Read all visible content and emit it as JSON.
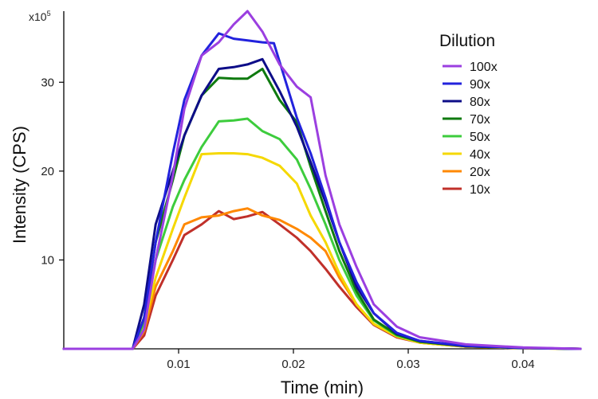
{
  "chart_data": {
    "type": "line",
    "xlabel": "Time (min)",
    "ylabel": "Intensity (CPS)",
    "y_multiplier": {
      "base": "x10",
      "exp": "5"
    },
    "xlim": [
      0,
      0.045
    ],
    "ylim": [
      0,
      38
    ],
    "x_ticks": [
      {
        "value": 0.01,
        "label": "0.01"
      },
      {
        "value": 0.02,
        "label": "0.02"
      },
      {
        "value": 0.03,
        "label": "0.03"
      },
      {
        "value": 0.04,
        "label": "0.04"
      }
    ],
    "y_ticks": [
      {
        "value": 10,
        "label": "10"
      },
      {
        "value": 20,
        "label": "20"
      },
      {
        "value": 30,
        "label": "30"
      }
    ],
    "grid": false,
    "legend": {
      "title": "Dilution",
      "position": "top-right"
    },
    "series": [
      {
        "name": "100x",
        "color": "#9b3fe0",
        "x": [
          0,
          0.005,
          0.006,
          0.007,
          0.008,
          0.0095,
          0.0105,
          0.012,
          0.0135,
          0.0148,
          0.016,
          0.0173,
          0.0188,
          0.0203,
          0.0215,
          0.0228,
          0.024,
          0.0255,
          0.027,
          0.029,
          0.031,
          0.035,
          0.04,
          0.045
        ],
        "y": [
          0,
          0,
          0,
          2.2,
          10,
          19.5,
          27,
          33,
          34.5,
          36.5,
          38,
          35.7,
          32,
          29.5,
          28.3,
          19.5,
          14,
          9.2,
          5,
          2.5,
          1.3,
          0.5,
          0.15,
          0
        ]
      },
      {
        "name": "90x",
        "color": "#2222dd",
        "x": [
          0,
          0.005,
          0.006,
          0.007,
          0.008,
          0.0095,
          0.0105,
          0.012,
          0.0135,
          0.0148,
          0.016,
          0.0173,
          0.0183,
          0.0203,
          0.0215,
          0.0228,
          0.024,
          0.0255,
          0.027,
          0.029,
          0.031,
          0.035,
          0.04,
          0.045
        ],
        "y": [
          0,
          0,
          0,
          3.5,
          12,
          22,
          28,
          33,
          35.5,
          34.9,
          34.7,
          34.5,
          34.4,
          26,
          22,
          17,
          12,
          7.5,
          4,
          1.8,
          0.9,
          0.35,
          0.1,
          0
        ]
      },
      {
        "name": "80x",
        "color": "#0d0d88",
        "x": [
          0,
          0.005,
          0.006,
          0.007,
          0.008,
          0.0095,
          0.0105,
          0.012,
          0.0135,
          0.0148,
          0.016,
          0.0173,
          0.0188,
          0.0203,
          0.0215,
          0.0228,
          0.024,
          0.0255,
          0.027,
          0.029,
          0.031,
          0.035,
          0.04,
          0.045
        ],
        "y": [
          0,
          0,
          0,
          5,
          14,
          20,
          24,
          28.5,
          31.5,
          31.7,
          32,
          32.6,
          29,
          25,
          21,
          16.5,
          12,
          7,
          4,
          1.7,
          0.9,
          0.3,
          0.1,
          0
        ]
      },
      {
        "name": "70x",
        "color": "#0f7a0f",
        "x": [
          0,
          0.005,
          0.006,
          0.007,
          0.008,
          0.0095,
          0.0105,
          0.012,
          0.0135,
          0.0148,
          0.016,
          0.0173,
          0.0188,
          0.0203,
          0.0215,
          0.0228,
          0.024,
          0.0255,
          0.027,
          0.029,
          0.031,
          0.035,
          0.04,
          0.045
        ],
        "y": [
          0,
          0,
          0,
          3.5,
          12,
          19,
          24,
          28.5,
          30.5,
          30.4,
          30.4,
          31.5,
          28,
          25.5,
          20.5,
          15.5,
          11,
          6.5,
          3.3,
          1.6,
          0.8,
          0.3,
          0.1,
          0
        ]
      },
      {
        "name": "50x",
        "color": "#3dcc3d",
        "x": [
          0,
          0.005,
          0.006,
          0.007,
          0.008,
          0.0095,
          0.0105,
          0.012,
          0.0135,
          0.0148,
          0.016,
          0.0173,
          0.0188,
          0.0203,
          0.0215,
          0.0228,
          0.024,
          0.0255,
          0.027,
          0.029,
          0.031,
          0.035,
          0.04,
          0.045
        ],
        "y": [
          0,
          0,
          0,
          3,
          10,
          16,
          19,
          22.7,
          25.6,
          25.7,
          25.9,
          24.5,
          23.6,
          21.3,
          18,
          14,
          10,
          6,
          3.2,
          1.5,
          0.8,
          0.3,
          0.1,
          0
        ]
      },
      {
        "name": "40x",
        "color": "#f5d800",
        "x": [
          0,
          0.005,
          0.006,
          0.007,
          0.008,
          0.0095,
          0.0105,
          0.012,
          0.0135,
          0.0148,
          0.016,
          0.0173,
          0.0188,
          0.0203,
          0.0215,
          0.0228,
          0.024,
          0.0255,
          0.027,
          0.029,
          0.031,
          0.035,
          0.04,
          0.045
        ],
        "y": [
          0,
          0,
          0,
          2.5,
          8,
          13.5,
          17,
          21.9,
          22,
          22,
          21.9,
          21.5,
          20.6,
          18.6,
          15,
          12,
          8.5,
          5,
          2.8,
          1.4,
          0.7,
          0.25,
          0.08,
          0
        ]
      },
      {
        "name": "20x",
        "color": "#ff8800",
        "x": [
          0,
          0.005,
          0.006,
          0.007,
          0.008,
          0.0095,
          0.0105,
          0.012,
          0.0135,
          0.0148,
          0.016,
          0.0173,
          0.0188,
          0.0203,
          0.0215,
          0.0228,
          0.024,
          0.0255,
          0.027,
          0.029,
          0.031,
          0.035,
          0.04,
          0.045
        ],
        "y": [
          0,
          0,
          0,
          2,
          7,
          11,
          14,
          14.8,
          15,
          15.5,
          15.8,
          15,
          14.5,
          13.5,
          12.5,
          11,
          8,
          5,
          2.8,
          1.4,
          0.7,
          0.25,
          0.08,
          0
        ]
      },
      {
        "name": "10x",
        "color": "#c0302a",
        "x": [
          0,
          0.005,
          0.006,
          0.007,
          0.008,
          0.0095,
          0.0105,
          0.012,
          0.0135,
          0.0148,
          0.016,
          0.0173,
          0.0188,
          0.0203,
          0.0215,
          0.0228,
          0.024,
          0.0255,
          0.027,
          0.029,
          0.031,
          0.035,
          0.04,
          0.045
        ],
        "y": [
          0,
          0,
          0,
          1.5,
          6,
          10,
          12.8,
          14,
          15.5,
          14.6,
          14.9,
          15.4,
          14,
          12.5,
          11,
          9,
          7,
          4.7,
          2.7,
          1.3,
          0.7,
          0.25,
          0.08,
          0
        ]
      }
    ]
  }
}
